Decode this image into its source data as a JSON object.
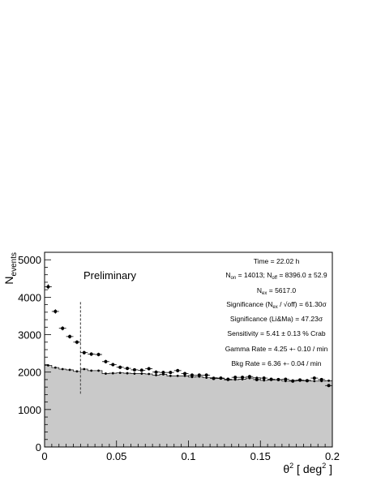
{
  "chart_data": {
    "type": "scatter",
    "xlabel": "θ² [ deg² ]",
    "ylabel": "N_events",
    "xlim": [
      0,
      0.2
    ],
    "ylim": [
      0,
      5200
    ],
    "x_ticks": [
      "0",
      "0.05",
      "0.1",
      "0.15",
      "0.2"
    ],
    "y_ticks": [
      "0",
      "1000",
      "2000",
      "3000",
      "4000",
      "5000"
    ],
    "annotation": "Preliminary",
    "cut_line_x": 0.025,
    "info_box": [
      "Time = 22.02 h",
      "N_on = 14013; N_off = 8396.0 ± 52.9",
      "N_ex = 5617.0",
      "Significance (N_ex / √off) = 61.30σ",
      "Significance (Li&Ma) = 47.23σ",
      "Sensitivity = 5.41 ± 0.13 % Crab",
      "Gamma Rate = 4.25 +- 0.10 / min",
      "Bkg Rate = 6.36 +- 0.04 / min"
    ],
    "bin_width": 0.005,
    "series": [
      {
        "style": "points with error bars",
        "x": [
          0.0025,
          0.0075,
          0.0125,
          0.0175,
          0.0225,
          0.0275,
          0.0325,
          0.0375,
          0.0425,
          0.0475,
          0.0525,
          0.0575,
          0.0625,
          0.0675,
          0.0725,
          0.0775,
          0.0825,
          0.0875,
          0.0925,
          0.0975,
          0.1025,
          0.1075,
          0.1125,
          0.1175,
          0.1225,
          0.1275,
          0.1325,
          0.1375,
          0.1425,
          0.1475,
          0.1525,
          0.1575,
          0.1625,
          0.1675,
          0.1725,
          0.1775,
          0.1825,
          0.1875,
          0.1925,
          0.1975
        ],
        "values": [
          4280,
          3620,
          3170,
          2950,
          2800,
          2520,
          2480,
          2470,
          2280,
          2200,
          2130,
          2100,
          2060,
          2050,
          2090,
          2000,
          1990,
          1990,
          2040,
          1960,
          1920,
          1920,
          1920,
          1830,
          1840,
          1810,
          1860,
          1860,
          1880,
          1800,
          1840,
          1810,
          1800,
          1810,
          1760,
          1790,
          1770,
          1840,
          1800,
          1640
        ],
        "errors": [
          66,
          60,
          56,
          54,
          53,
          50,
          50,
          50,
          48,
          47,
          46,
          46,
          45,
          45,
          46,
          45,
          45,
          45,
          45,
          44,
          44,
          44,
          44,
          43,
          43,
          43,
          43,
          43,
          43,
          42,
          43,
          43,
          42,
          43,
          42,
          42,
          42,
          43,
          42,
          40
        ]
      },
      {
        "style": "filled histogram (off)",
        "x": [
          0.0025,
          0.0075,
          0.0125,
          0.0175,
          0.0225,
          0.0275,
          0.0325,
          0.0375,
          0.0425,
          0.0475,
          0.0525,
          0.0575,
          0.0625,
          0.0675,
          0.0725,
          0.0775,
          0.0825,
          0.0875,
          0.0925,
          0.0975,
          0.1025,
          0.1075,
          0.1125,
          0.1175,
          0.1225,
          0.1275,
          0.1325,
          0.1375,
          0.1425,
          0.1475,
          0.1525,
          0.1575,
          0.1625,
          0.1675,
          0.1725,
          0.1775,
          0.1825,
          0.1875,
          0.1925,
          0.1975
        ],
        "values": [
          2180,
          2120,
          2080,
          2060,
          2020,
          2080,
          2040,
          2040,
          1960,
          1970,
          1980,
          1970,
          1960,
          1960,
          1950,
          1920,
          1940,
          1900,
          1900,
          1900,
          1870,
          1880,
          1850,
          1850,
          1830,
          1790,
          1800,
          1810,
          1840,
          1850,
          1780,
          1790,
          1800,
          1760,
          1780,
          1770,
          1780,
          1760,
          1760,
          1770
        ]
      }
    ]
  }
}
